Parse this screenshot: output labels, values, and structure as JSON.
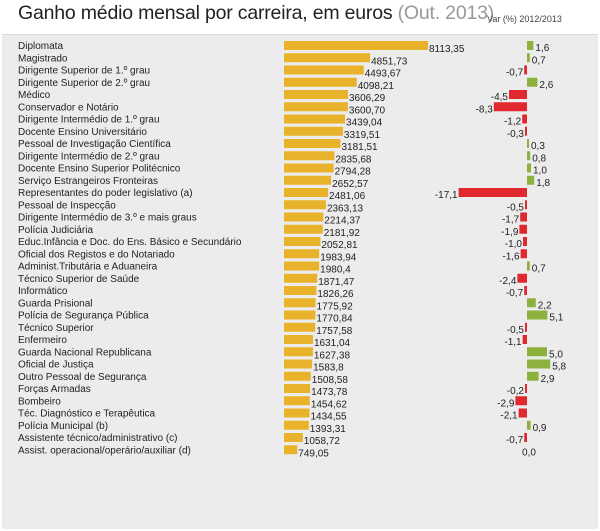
{
  "chart_data": {
    "type": "bar",
    "title": "Ganho médio mensal por carreira, em euros",
    "subtitle": "(Out. 2013)",
    "var_label": "Var (%) 2012/2013",
    "colors": {
      "value_bar": "#e8b22a",
      "positive": "#8db13d",
      "negative": "#e0282e"
    },
    "categories": [
      "Diplomata",
      "Magistrado",
      "Dirigente Superior de 1.º grau",
      "Dirigente Superior de 2.º grau",
      "Médico",
      "Conservador e Notário",
      "Dirigente Intermédio de 1.º grau",
      "Docente Ensino Universitário",
      "Pessoal de Investigação Científica",
      "Dirigente Intermédio de 2.º grau",
      "Docente Ensino Superior Politécnico",
      "Serviço Estrangeiros Fronteiras",
      "Representantes do poder legislativo (a)",
      "Pessoal de Inspecção",
      "Dirigente Intermédio de 3.º e mais graus",
      "Polícia Judiciária",
      "Educ.Infância e Doc. do Ens. Básico e Secundário",
      "Oficial dos Registos e do Notariado",
      "Administ.Tributária e Aduaneira",
      "Técnico Superior de Saúde",
      "Informático",
      "Guarda Prisional",
      "Polícia de Segurança Pública",
      "Técnico Superior",
      "Enfermeiro",
      "Guarda Nacional Republicana",
      "Oficial de Justiça",
      "Outro Pessoal de Segurança",
      "Forças Armadas",
      "Bombeiro",
      "Téc. Diagnóstico e Terapêutica",
      "Polícia Municipal (b)",
      "Assistente técnico/administrativo (c)",
      "Assist. operacional/operário/auxiliar (d)"
    ],
    "series": [
      {
        "name": "Ganho médio mensal",
        "values": [
          8113.35,
          4851.73,
          4493.67,
          4098.21,
          3606.29,
          3600.7,
          3439.04,
          3319.51,
          3181.51,
          2835.68,
          2794.28,
          2652.57,
          2481.06,
          2363.13,
          2214.37,
          2181.92,
          2052.81,
          1983.94,
          1980.4,
          1871.47,
          1826.26,
          1775.92,
          1770.84,
          1757.58,
          1631.04,
          1627.38,
          1583.8,
          1508.58,
          1473.78,
          1454.62,
          1434.55,
          1393.31,
          1058.72,
          749.05
        ],
        "labels": [
          "8113,35",
          "4851,73",
          "4493,67",
          "4098,21",
          "3606,29",
          "3600,70",
          "3439,04",
          "3319,51",
          "3181,51",
          "2835,68",
          "2794,28",
          "2652,57",
          "2481,06",
          "2363,13",
          "2214,37",
          "2181,92",
          "2052,81",
          "1983,94",
          "1980,4",
          "1871,47",
          "1826,26",
          "1775,92",
          "1770,84",
          "1757,58",
          "1631,04",
          "1627,38",
          "1583,8",
          "1508,58",
          "1473,78",
          "1454,62",
          "1434,55",
          "1393,31",
          "1058,72",
          "749,05"
        ]
      },
      {
        "name": "Var (%) 2012/2013",
        "values": [
          1.6,
          0.7,
          -0.7,
          2.6,
          -4.5,
          -8.3,
          -1.2,
          -0.3,
          0.3,
          0.8,
          1.0,
          1.8,
          -17.1,
          -0.5,
          -1.7,
          -1.9,
          -1.0,
          -1.6,
          0.7,
          -2.4,
          -0.7,
          2.2,
          5.1,
          -0.5,
          -1.1,
          5.0,
          5.8,
          2.9,
          -0.2,
          -2.9,
          -2.1,
          0.9,
          -0.7,
          0.0
        ],
        "labels": [
          "1,6",
          "0,7",
          "-0,7",
          "2,6",
          "-4,5",
          "-8,3",
          "-1,2",
          "-0,3",
          "0,3",
          "0,8",
          "1,0",
          "1,8",
          "-17,1",
          "-0,5",
          "-1,7",
          "-1,9",
          "-1,0",
          "-1,6",
          "0,7",
          "-2,4",
          "-0,7",
          "2,2",
          "5,1",
          "-0,5",
          "-1,1",
          "5,0",
          "5,8",
          "2,9",
          "-0,2",
          "-2,9",
          "-2,1",
          "0,9",
          "-0,7",
          "0,0"
        ]
      }
    ],
    "grid": false,
    "legend": "none"
  }
}
